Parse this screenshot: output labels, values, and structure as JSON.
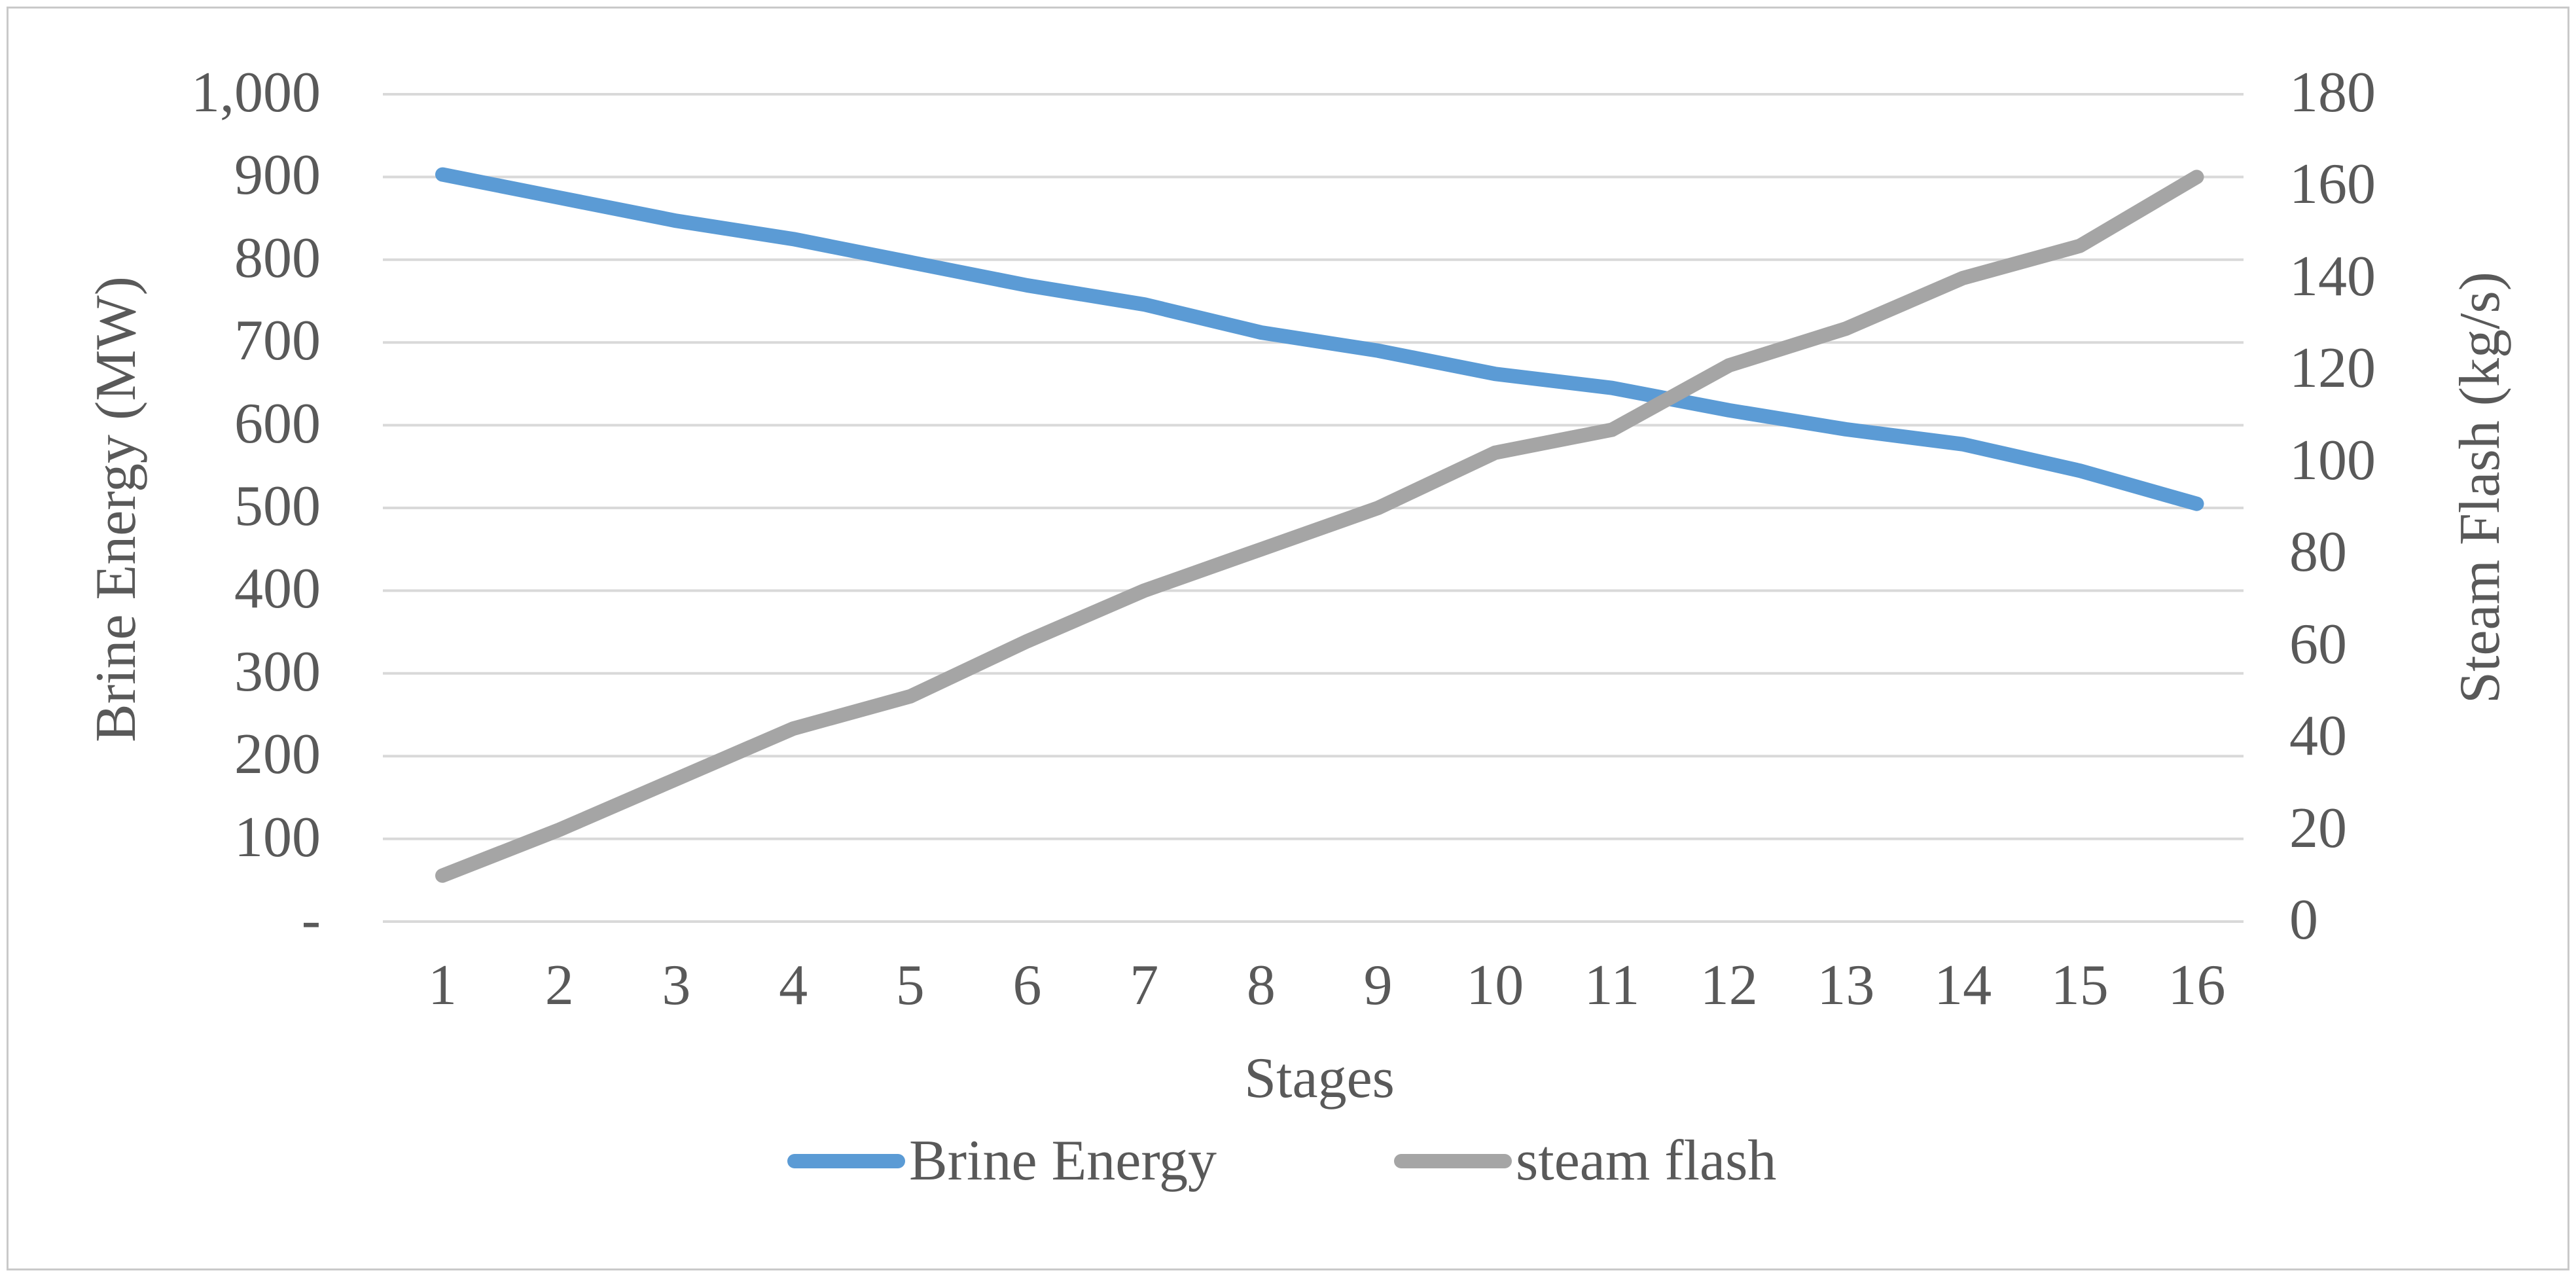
{
  "figure": {
    "background": "#ffffff",
    "border_color": "#c9c9c9",
    "text_color": "#595959",
    "gridline_color": "#d9d9d9"
  },
  "chart_data": {
    "type": "line",
    "title": "",
    "xlabel": "Stages",
    "categories": [
      1,
      2,
      3,
      4,
      5,
      6,
      7,
      8,
      9,
      10,
      11,
      12,
      13,
      14,
      15,
      16
    ],
    "grid": true,
    "legend_position": "bottom",
    "series": [
      {
        "name": "Brine Energy",
        "axis": "left",
        "color": "#5b9bd5",
        "values": [
          903,
          875,
          847,
          825,
          797,
          769,
          746,
          712,
          690,
          662,
          645,
          618,
          595,
          577,
          545,
          505
        ]
      },
      {
        "name": "steam flash",
        "axis": "right",
        "color": "#a5a5a5",
        "values": [
          10,
          20,
          31,
          42,
          49,
          61,
          72,
          81,
          90,
          102,
          107,
          121,
          129,
          140,
          147,
          162
        ]
      }
    ],
    "left_axis": {
      "title": "Brine Energy (MW)",
      "min": 0,
      "max": 1000,
      "step": 100,
      "tick_labels_top_to_bottom": [
        "1,000",
        "900",
        "800",
        "700",
        "600",
        "500",
        "400",
        "300",
        "200",
        "100",
        "-"
      ]
    },
    "right_axis": {
      "title": "Steam Flash (kg/s)",
      "min": 0,
      "max": 180,
      "step": 20,
      "tick_labels_top_to_bottom": [
        "180",
        "160",
        "140",
        "120",
        "100",
        "80",
        "60",
        "40",
        "20",
        "0"
      ]
    },
    "legend": [
      {
        "label": "Brine Energy",
        "color": "#5b9bd5"
      },
      {
        "label": "steam flash",
        "color": "#a5a5a5"
      }
    ]
  }
}
